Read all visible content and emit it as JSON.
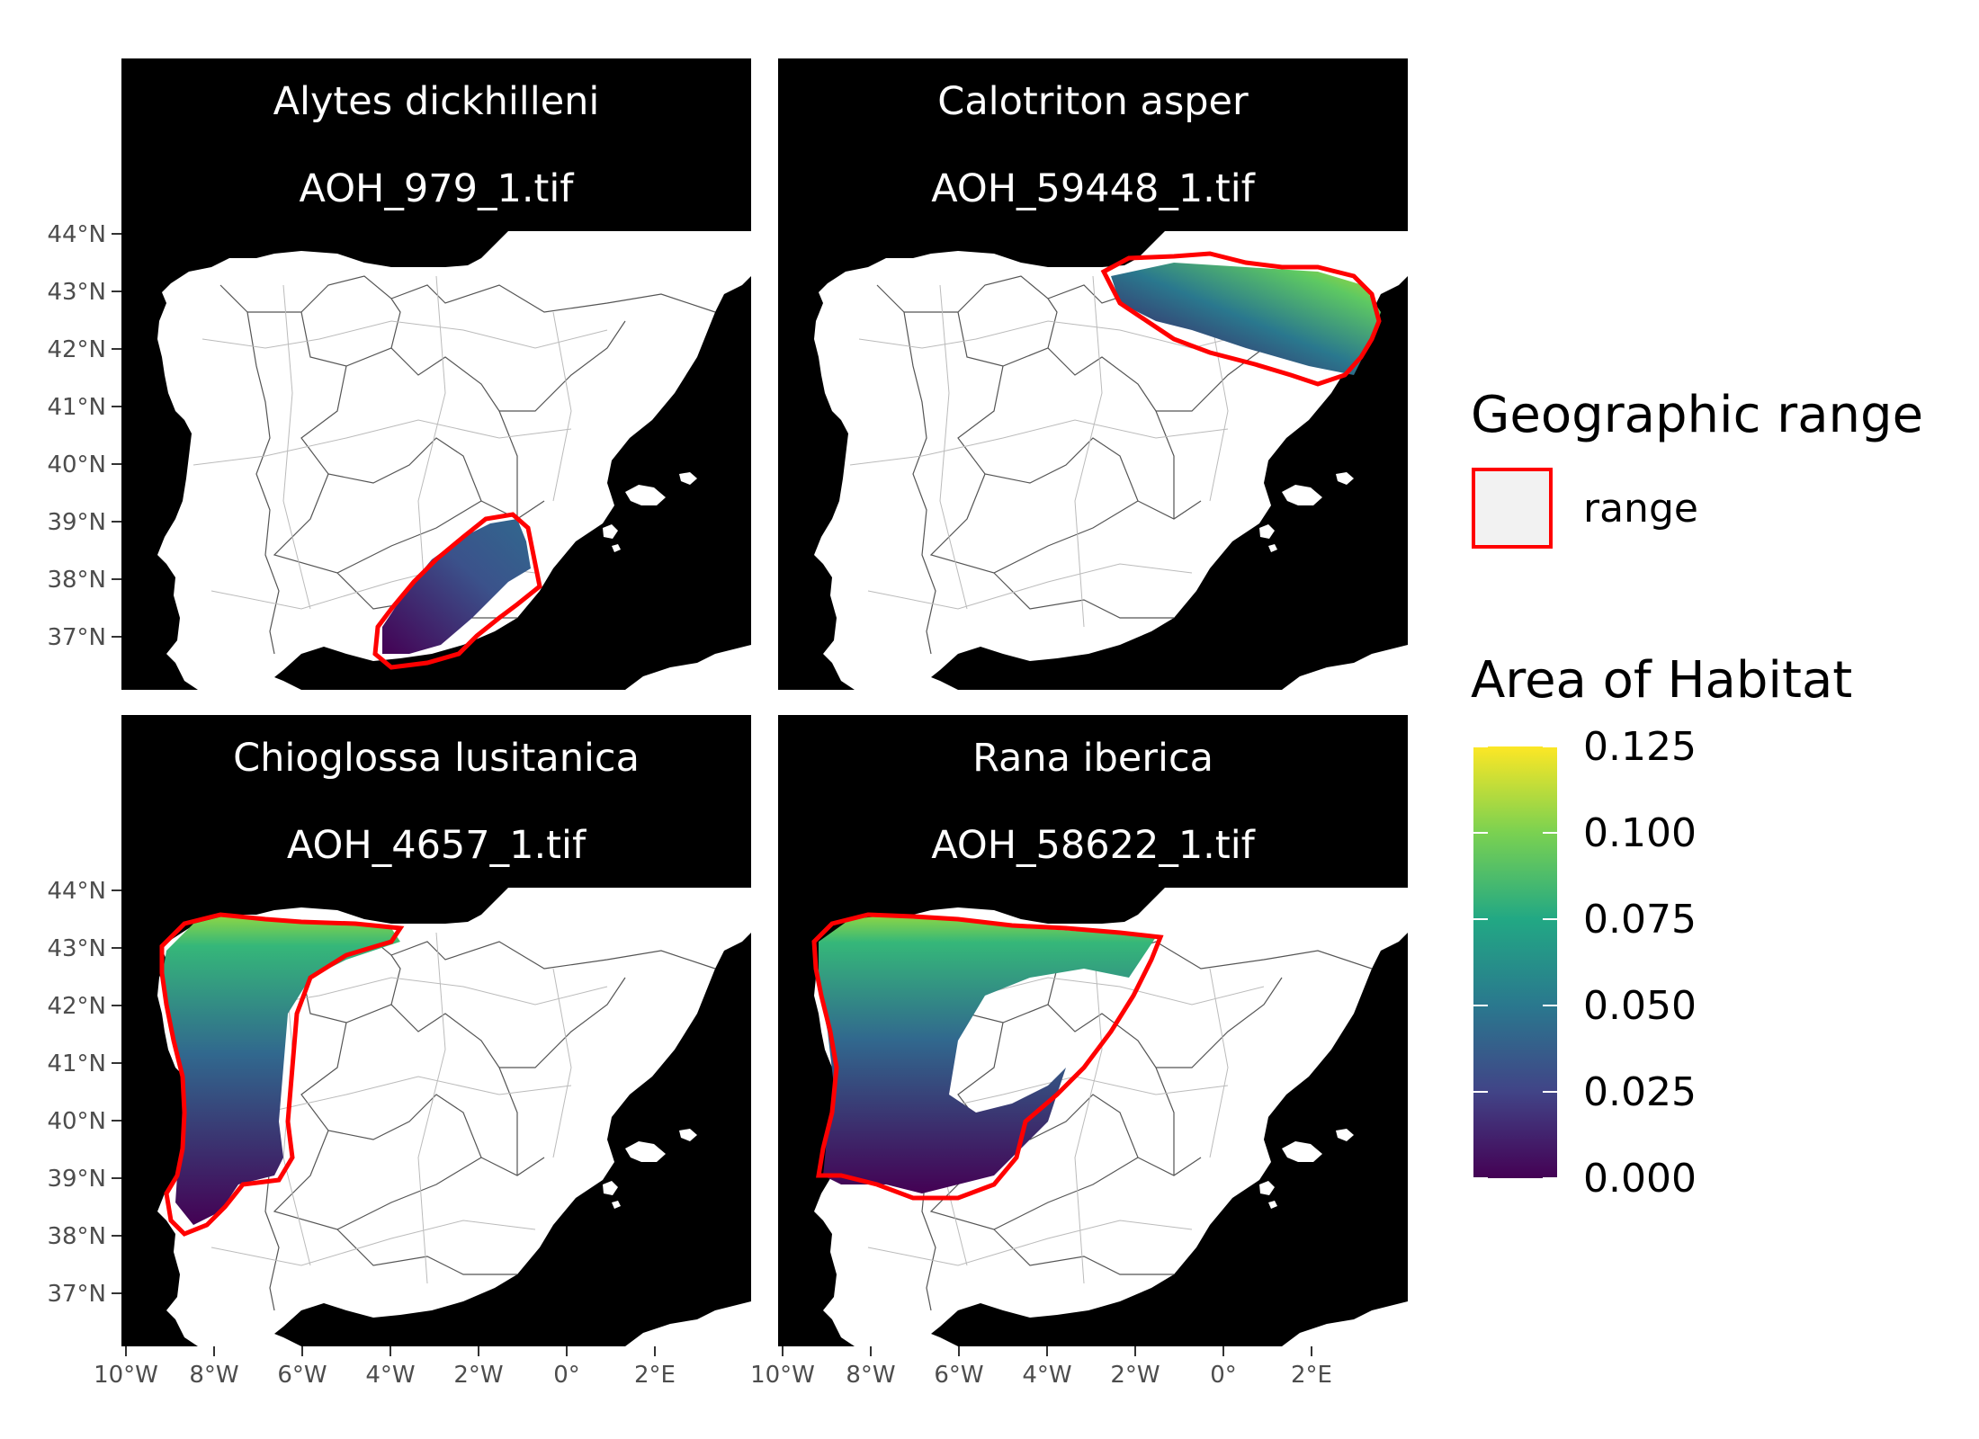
{
  "panels": [
    {
      "species": "Alytes dickhilleni",
      "file": "AOH_979_1.tif"
    },
    {
      "species": "Calotriton asper",
      "file": "AOH_59448_1.tif"
    },
    {
      "species": "Chioglossa lusitanica",
      "file": "AOH_4657_1.tif"
    },
    {
      "species": "Rana iberica",
      "file": "AOH_58622_1.tif"
    }
  ],
  "axes": {
    "y_ticks": [
      "44°N",
      "43°N",
      "42°N",
      "41°N",
      "40°N",
      "39°N",
      "38°N",
      "37°N"
    ],
    "x_ticks": [
      "10°W",
      "8°W",
      "6°W",
      "4°W",
      "2°W",
      "0°",
      "2°E"
    ]
  },
  "legend": {
    "range_title": "Geographic range",
    "range_label": "range",
    "aoh_title": "Area of Habitat",
    "aoh_labels": [
      "0.125",
      "0.100",
      "0.075",
      "0.050",
      "0.025",
      "0.000"
    ]
  },
  "colors": {
    "range_outline": "#ff0000",
    "sea": "#000000",
    "land": "#ffffff",
    "viridis_low": "#440154",
    "viridis_mid": "#21918c",
    "viridis_high": "#fde725"
  }
}
